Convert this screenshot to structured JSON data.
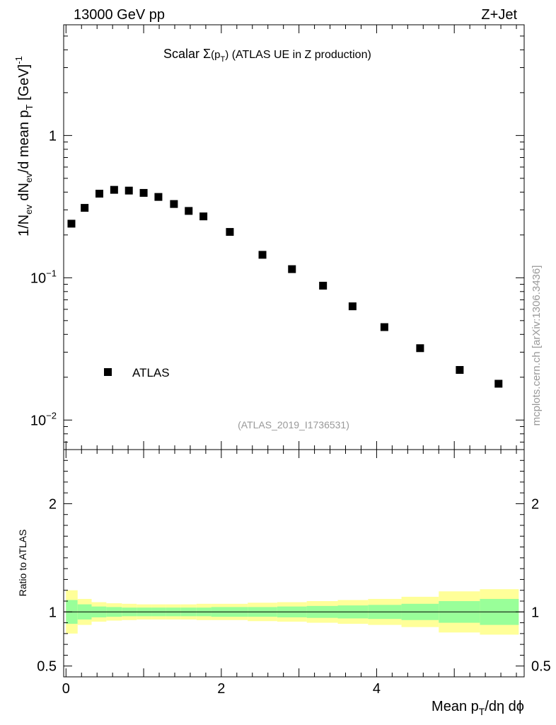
{
  "header": {
    "energy_label": "13000 GeV pp",
    "process_label": "Z+Jet"
  },
  "side_label": "mcplots.cern.ch [arXiv:1306.3436]",
  "chart_data": [
    {
      "type": "scatter",
      "panel": "main",
      "title_prefix": "Scalar ",
      "title_sigma": "Σ",
      "title_ptarg": "(p",
      "title_sub": "T",
      "title_close": ")",
      "title_suffix": " (ATLAS UE in Z production)",
      "ylabel_parts": [
        "1/N",
        "ev",
        " dN",
        "ev",
        "/d mean p",
        "T",
        " [GeV]",
        "-1"
      ],
      "yscale": "log",
      "ylim": [
        0.0062,
        6.0
      ],
      "xlim": [
        -0.03,
        5.9
      ],
      "y_ticks": [
        {
          "value": 1.0,
          "label": "1"
        },
        {
          "value": 0.1,
          "base": "10",
          "exp": "−1"
        },
        {
          "value": 0.01,
          "base": "10",
          "exp": "−2"
        }
      ],
      "legend": {
        "label": "ATLAS",
        "position": "bottom-left"
      },
      "watermark": "(ATLAS_2019_I1736531)",
      "series": [
        {
          "name": "ATLAS",
          "x": [
            0.07,
            0.24,
            0.43,
            0.62,
            0.81,
            1.0,
            1.19,
            1.39,
            1.58,
            1.77,
            2.11,
            2.53,
            2.91,
            3.31,
            3.69,
            4.1,
            4.56,
            5.07,
            5.57
          ],
          "y": [
            0.24,
            0.31,
            0.39,
            0.415,
            0.41,
            0.395,
            0.37,
            0.33,
            0.295,
            0.27,
            0.21,
            0.145,
            0.115,
            0.088,
            0.063,
            0.045,
            0.032,
            0.0225,
            0.018
          ]
        }
      ]
    },
    {
      "type": "area",
      "panel": "ratio",
      "ylabel": "Ratio to ATLAS",
      "xlabel_parts": [
        "Mean p",
        "T",
        "/dη dϕ"
      ],
      "ylim": [
        0.4,
        2.5
      ],
      "xlim": [
        -0.03,
        5.9
      ],
      "x_ticks": [
        {
          "value": 0,
          "label": "0"
        },
        {
          "value": 2,
          "label": "2"
        },
        {
          "value": 4,
          "label": "4"
        }
      ],
      "y_ticks": [
        {
          "value": 2,
          "label": "2"
        },
        {
          "value": 1,
          "label": "1"
        },
        {
          "value": 0.5,
          "label": "0.5"
        }
      ],
      "bins": [
        0,
        0.15,
        0.33,
        0.52,
        0.72,
        0.91,
        1.1,
        1.29,
        1.48,
        1.68,
        1.87,
        2.34,
        2.72,
        3.1,
        3.5,
        3.89,
        4.32,
        4.8,
        5.33,
        5.83
      ],
      "inner_band": [
        0.11,
        0.07,
        0.05,
        0.045,
        0.04,
        0.04,
        0.04,
        0.04,
        0.04,
        0.04,
        0.045,
        0.045,
        0.05,
        0.055,
        0.06,
        0.065,
        0.075,
        0.1,
        0.12
      ],
      "outer_band": [
        0.2,
        0.12,
        0.09,
        0.08,
        0.075,
        0.07,
        0.07,
        0.07,
        0.07,
        0.075,
        0.075,
        0.085,
        0.09,
        0.1,
        0.11,
        0.12,
        0.14,
        0.19,
        0.21
      ],
      "colors": {
        "inner": "#99ff99",
        "outer": "#ffff99",
        "points": "#000000"
      }
    }
  ]
}
